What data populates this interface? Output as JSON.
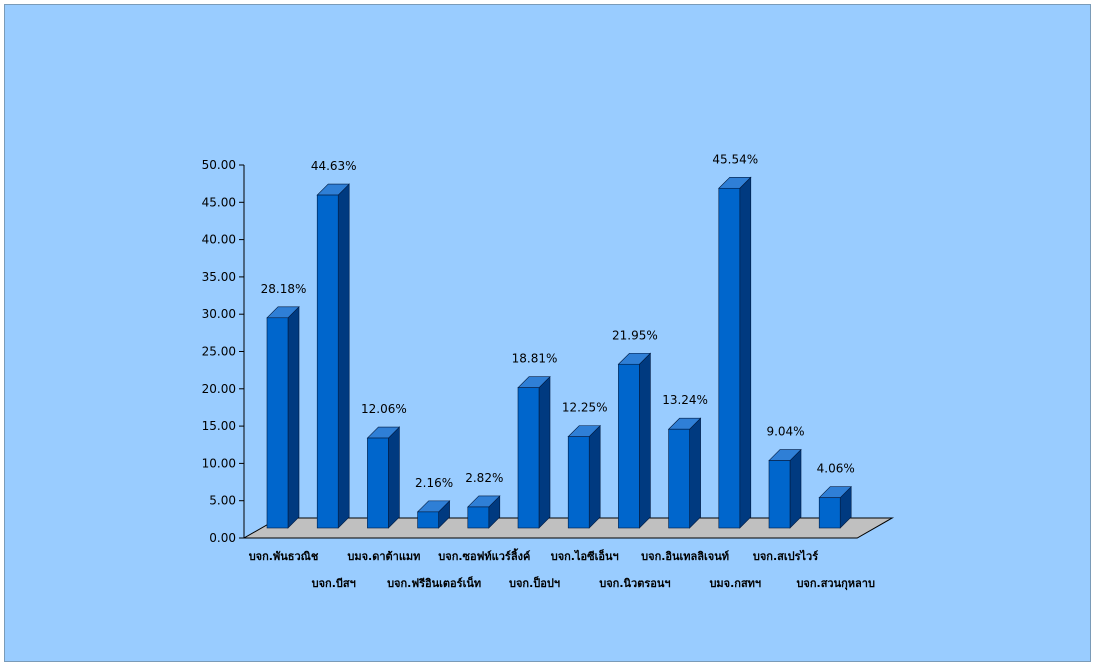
{
  "chart_data": {
    "type": "bar",
    "title": "",
    "xlabel": "",
    "ylabel": "",
    "ylim": [
      0,
      50
    ],
    "ytick_step": 5,
    "ytick_labels": [
      "0.00",
      "5.00",
      "10.00",
      "15.00",
      "20.00",
      "25.00",
      "30.00",
      "35.00",
      "40.00",
      "45.00",
      "50.00"
    ],
    "categories": [
      "บจก.พันธวณิช",
      "บจก.บีสฯ",
      "บมจ.ดาต้าแมท",
      "บจก.ฟรีอินเตอร์เน็ท",
      "บจก.ซอฟท์แวร์ลิ้งค์",
      "บจก.ป็อปฯ",
      "บจก.ไอซีเอ็นฯ",
      "บจก.นิวตรอนฯ",
      "บจก.อินเทลลิเจนท์",
      "บมจ.กสทฯ",
      "บจก.สเปรไวร์",
      "บจก.สวนกุหลาบ"
    ],
    "values": [
      28.18,
      44.63,
      12.06,
      2.16,
      2.82,
      18.81,
      12.25,
      21.95,
      13.24,
      45.54,
      9.04,
      4.06
    ],
    "data_labels": [
      "28.18%",
      "44.63%",
      "12.06%",
      "2.16%",
      "2.82%",
      "18.81%",
      "12.25%",
      "21.95%",
      "13.24%",
      "45.54%",
      "9.04%",
      "4.06%"
    ],
    "style": "3d-column",
    "legend": "none",
    "grid": false,
    "colors": {
      "background": "#99ccff",
      "bar_front": "#0066cc",
      "bar_side": "#003a80",
      "bar_top": "#2f7fd6",
      "floor": "#c0c0c0"
    }
  }
}
